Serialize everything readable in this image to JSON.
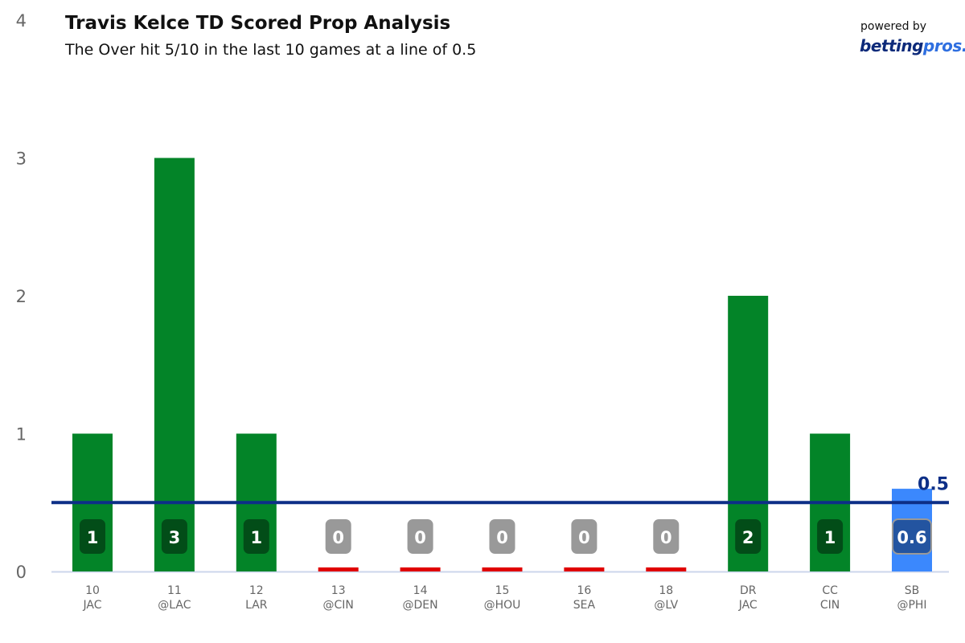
{
  "title": "Travis Kelce TD Scored Prop Analysis",
  "subtitle": "The Over hit 5/10 in the last 10 games at a line of 0.5",
  "branding": {
    "powered_by": "powered by",
    "brand_a": "betting",
    "brand_b": "pros",
    "brand_dot": "."
  },
  "chart_data": {
    "type": "bar",
    "categories": [
      [
        "10",
        "JAC"
      ],
      [
        "11",
        "@LAC"
      ],
      [
        "12",
        "LAR"
      ],
      [
        "13",
        "@CIN"
      ],
      [
        "14",
        "@DEN"
      ],
      [
        "15",
        "@HOU"
      ],
      [
        "16",
        "SEA"
      ],
      [
        "18",
        "@LV"
      ],
      [
        "DR",
        "JAC"
      ],
      [
        "CC",
        "CIN"
      ],
      [
        "SB",
        "@PHI"
      ]
    ],
    "values": [
      1,
      3,
      1,
      0,
      0,
      0,
      0,
      0,
      2,
      1,
      0.6
    ],
    "value_labels": [
      "1",
      "3",
      "1",
      "0",
      "0",
      "0",
      "0",
      "0",
      "2",
      "1",
      "0.6"
    ],
    "status": [
      "over",
      "over",
      "over",
      "under",
      "under",
      "under",
      "under",
      "under",
      "over",
      "over",
      "projection"
    ],
    "ylim": [
      0,
      4
    ],
    "yticks": [
      "0",
      "1",
      "2",
      "3",
      "4"
    ],
    "line": {
      "value": 0.5,
      "label": "0.5"
    },
    "grid": false,
    "colors": {
      "over": "#038428",
      "over_label": "#024d18",
      "under": "#e00000",
      "under_label": "#999999",
      "projection": "#3b88fd",
      "projection_label": "#2354a0",
      "line": "#0d2f87",
      "axis": "#ccd6eb",
      "tick_text": "#666666"
    }
  }
}
